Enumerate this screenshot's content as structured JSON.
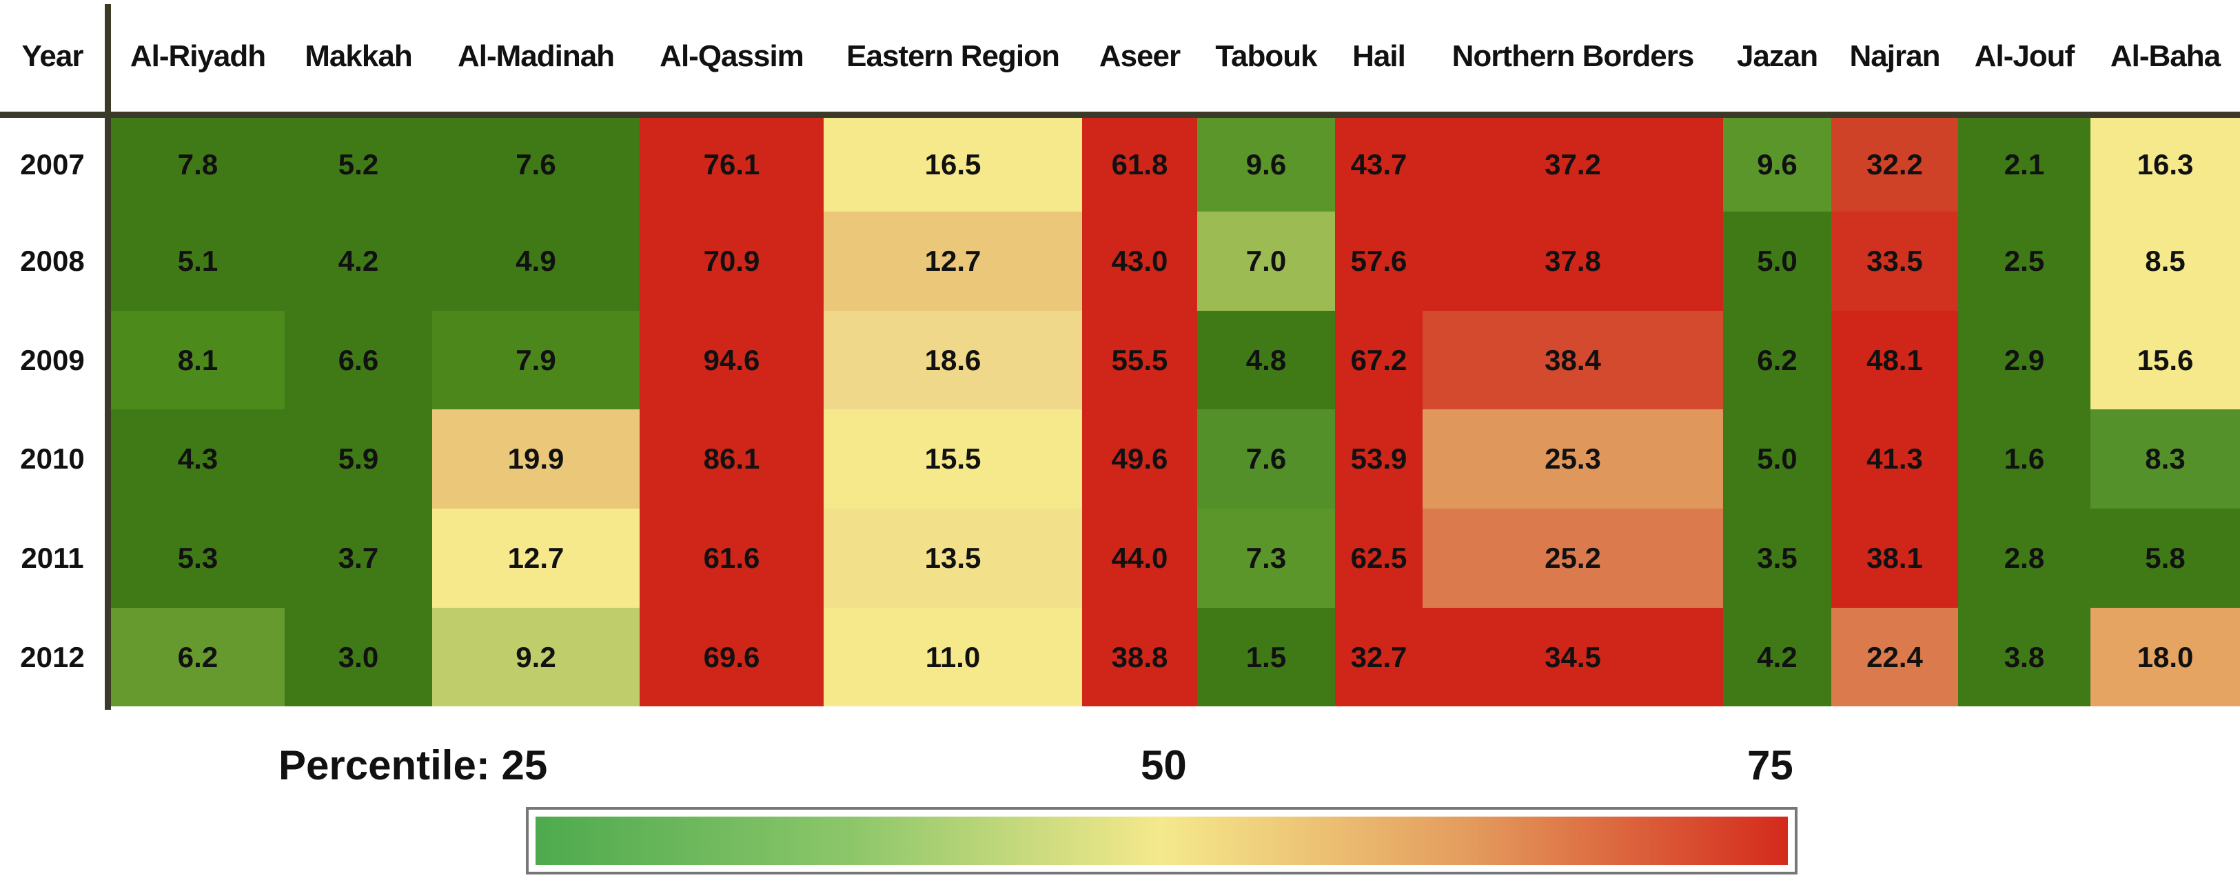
{
  "chart_data": {
    "type": "heatmap",
    "row_header": "Year",
    "columns": [
      "Al-Riyadh",
      "Makkah",
      "Al-Madinah",
      "Al-Qassim",
      "Eastern Region",
      "Aseer",
      "Tabouk",
      "Hail",
      "Northern Borders",
      "Jazan",
      "Najran",
      "Al-Jouf",
      "Al-Baha"
    ],
    "rows": [
      {
        "year": "2007",
        "values": [
          "7.8",
          "5.2",
          "7.6",
          "76.1",
          "16.5",
          "61.8",
          "9.6",
          "43.7",
          "37.2",
          "9.6",
          "32.2",
          "2.1",
          "16.3"
        ],
        "colors": [
          "#3f7a17",
          "#3f7a17",
          "#3f7a17",
          "#d02619",
          "#f5e98c",
          "#d02619",
          "#5a962a",
          "#d02619",
          "#d02619",
          "#5a962a",
          "#d04228",
          "#3f7a17",
          "#f5e98c"
        ]
      },
      {
        "year": "2008",
        "values": [
          "5.1",
          "4.2",
          "4.9",
          "70.9",
          "12.7",
          "43.0",
          "7.0",
          "57.6",
          "37.8",
          "5.0",
          "33.5",
          "2.5",
          "8.5"
        ],
        "colors": [
          "#3f7a17",
          "#3f7a17",
          "#3f7a17",
          "#d02619",
          "#ebc77a",
          "#d02619",
          "#9cbb52",
          "#d02619",
          "#d02619",
          "#3f7a17",
          "#d0321f",
          "#3f7a17",
          "#f5e98c"
        ]
      },
      {
        "year": "2009",
        "values": [
          "8.1",
          "6.6",
          "7.9",
          "94.6",
          "18.6",
          "55.5",
          "4.8",
          "67.2",
          "38.4",
          "6.2",
          "48.1",
          "2.9",
          "15.6"
        ],
        "colors": [
          "#4d8a1c",
          "#3f7a17",
          "#4c871b",
          "#d02619",
          "#efd88a",
          "#d02619",
          "#3f7a17",
          "#d02619",
          "#d34a2e",
          "#3f7a17",
          "#d02619",
          "#3f7a17",
          "#f5e98c"
        ]
      },
      {
        "year": "2010",
        "values": [
          "4.3",
          "5.9",
          "19.9",
          "86.1",
          "15.5",
          "49.6",
          "7.6",
          "53.9",
          "25.3",
          "5.0",
          "41.3",
          "1.6",
          "8.3"
        ],
        "colors": [
          "#3f7a17",
          "#3f7a17",
          "#ebc77a",
          "#d02619",
          "#f5e98c",
          "#d02619",
          "#53902a",
          "#d02619",
          "#e0975c",
          "#3f7a17",
          "#d02619",
          "#3f7a17",
          "#55912a"
        ]
      },
      {
        "year": "2011",
        "values": [
          "5.3",
          "3.7",
          "12.7",
          "61.6",
          "13.5",
          "44.0",
          "7.3",
          "62.5",
          "25.2",
          "3.5",
          "38.1",
          "2.8",
          "5.8"
        ],
        "colors": [
          "#3f7a17",
          "#3f7a17",
          "#f5e98c",
          "#d02619",
          "#f2e08a",
          "#d02619",
          "#5a962a",
          "#d02619",
          "#db7a4c",
          "#3f7a17",
          "#d02619",
          "#3f7a17",
          "#3f7a17"
        ]
      },
      {
        "year": "2012",
        "values": [
          "6.2",
          "3.0",
          "9.2",
          "69.6",
          "11.0",
          "38.8",
          "1.5",
          "32.7",
          "34.5",
          "4.2",
          "22.4",
          "3.8",
          "18.0"
        ],
        "colors": [
          "#66992e",
          "#3f7a17",
          "#bfcd6a",
          "#d02619",
          "#f5e98c",
          "#d02619",
          "#3f7a17",
          "#d02619",
          "#d02619",
          "#3f7a17",
          "#db7a4c",
          "#3f7a17",
          "#e5a462"
        ]
      }
    ],
    "legend": {
      "label": "Percentile: 25",
      "ticks": [
        "50",
        "75"
      ],
      "gradient": [
        "#4eaa4e",
        "#8cc66a",
        "#f5e98c",
        "#e39a5c",
        "#d42a1c"
      ]
    }
  }
}
